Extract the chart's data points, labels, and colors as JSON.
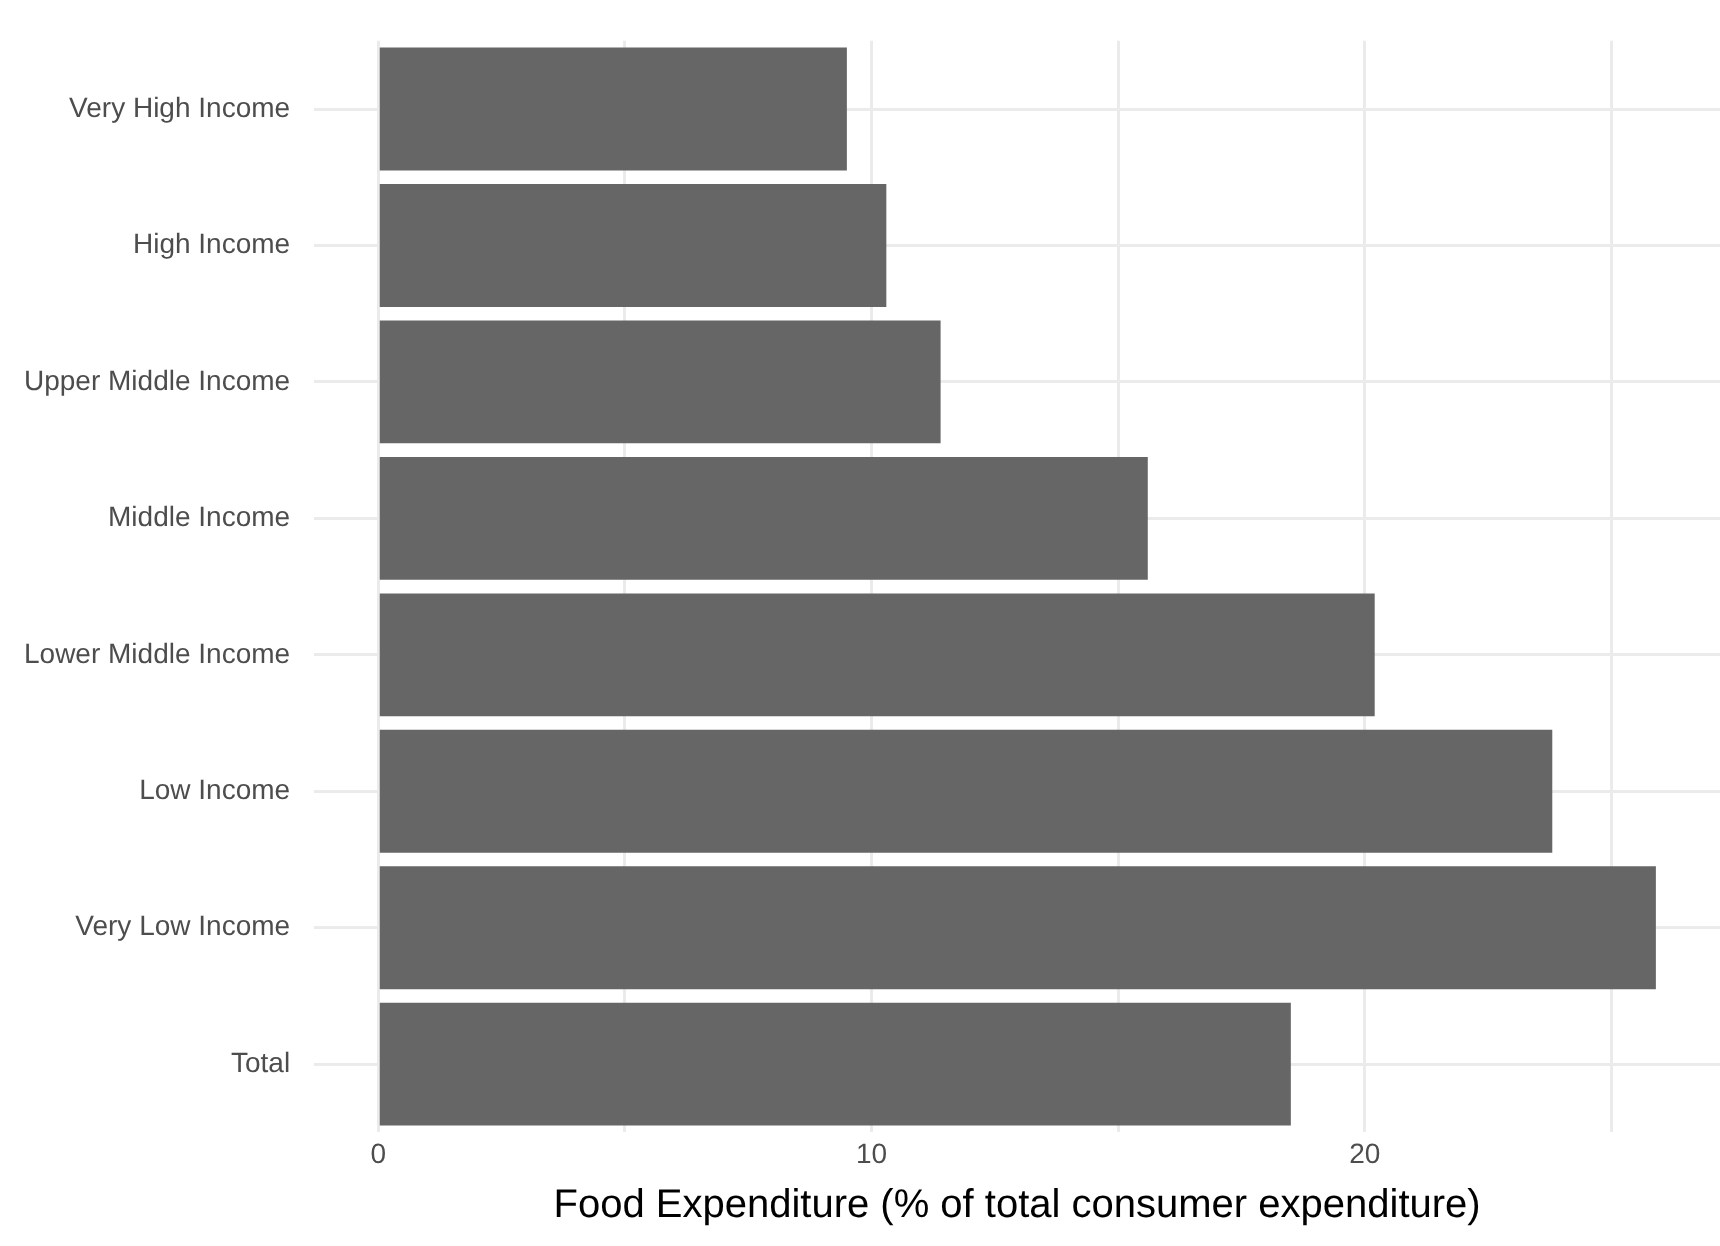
{
  "chart_data": {
    "type": "bar",
    "orientation": "horizontal",
    "xlabel": "Food Expenditure (% of total consumer expenditure)",
    "categories": [
      "Very High Income",
      "High Income",
      "Upper Middle Income",
      "Middle Income",
      "Lower Middle Income",
      "Low Income",
      "Very Low Income",
      "Total"
    ],
    "values": [
      9.5,
      10.3,
      11.4,
      15.6,
      20.2,
      23.8,
      25.9,
      18.5
    ],
    "color": "#666666",
    "xlim": [
      -1.3,
      27.2
    ],
    "xticks": [
      0,
      {
        "value": 5,
        "label": null
      },
      10,
      {
        "value": 15,
        "label": null
      },
      20,
      {
        "value": 25,
        "label": null
      }
    ],
    "grid": true,
    "legend": false
  }
}
